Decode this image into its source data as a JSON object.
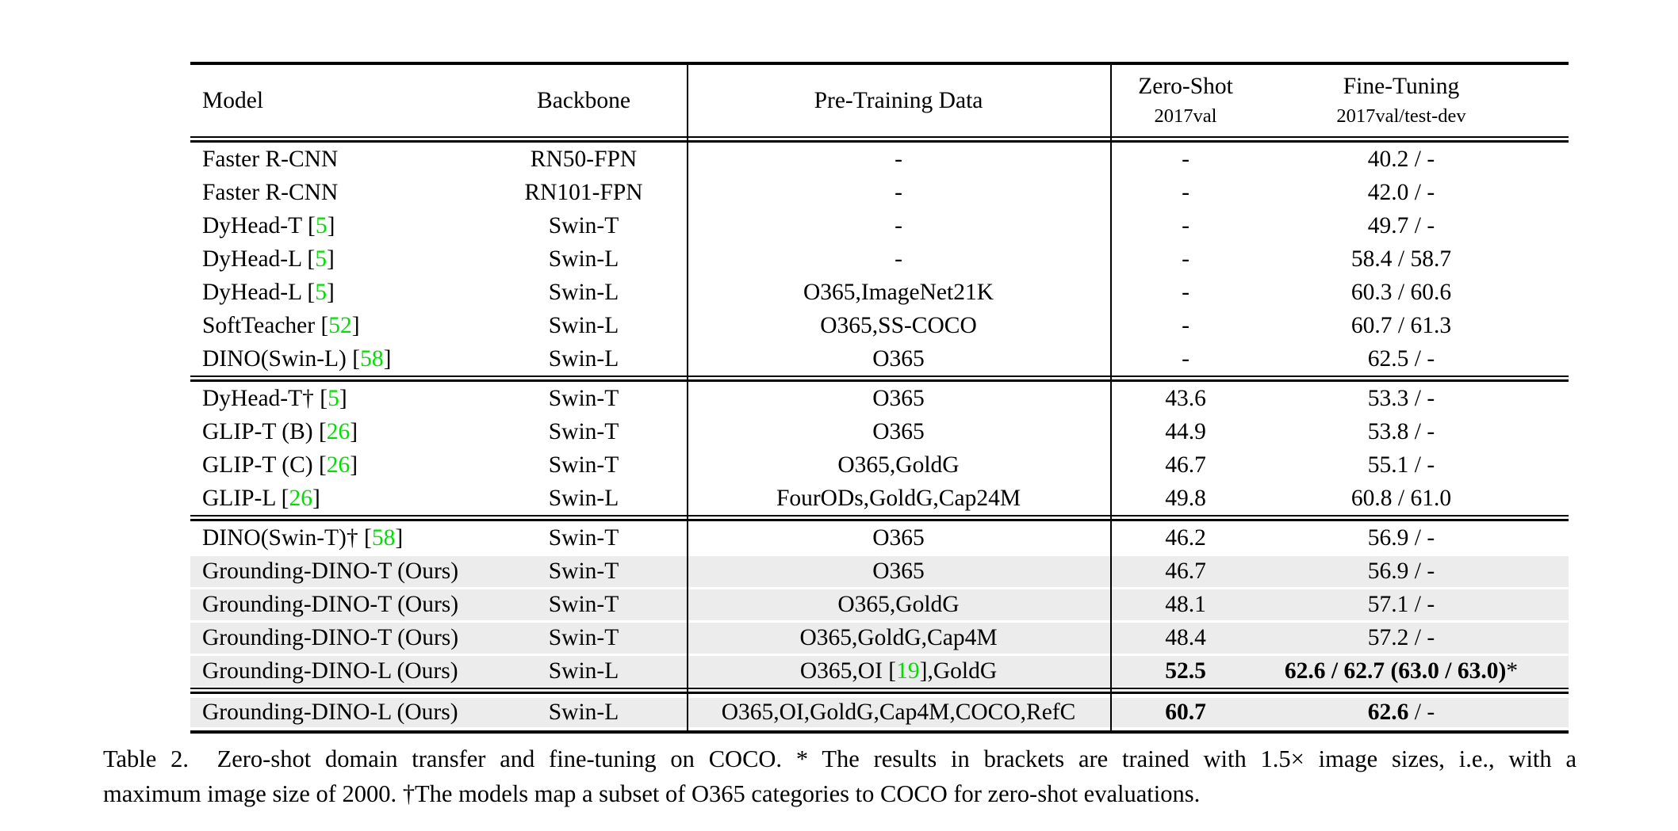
{
  "colors": {
    "citation_green": "#00e000",
    "row_highlight_gray": "#ececec"
  },
  "table": {
    "header": {
      "model": "Model",
      "backbone": "Backbone",
      "pretrain": "Pre-Training Data",
      "zeroshot": "Zero-Shot",
      "zeroshot_sub": "2017val",
      "finetune": "Fine-Tuning",
      "finetune_sub": "2017val/test-dev"
    },
    "sections": [
      {
        "rows": [
          {
            "model_pre": "Faster R-CNN",
            "model_cite": "",
            "model_post": "",
            "backbone": "RN50-FPN",
            "pretrain_pre": "-",
            "pretrain_cite": "",
            "pretrain_post": "",
            "zeroshot_bold": "",
            "zeroshot": "-",
            "finetune_bold": "",
            "finetune": "40.2 / -",
            "shade": "off"
          },
          {
            "model_pre": "Faster R-CNN",
            "model_cite": "",
            "model_post": "",
            "backbone": "RN101-FPN",
            "pretrain_pre": "-",
            "pretrain_cite": "",
            "pretrain_post": "",
            "zeroshot_bold": "",
            "zeroshot": "-",
            "finetune_bold": "",
            "finetune": "42.0 / -",
            "shade": "off"
          },
          {
            "model_pre": "DyHead-T [",
            "model_cite": "5",
            "model_post": "]",
            "backbone": "Swin-T",
            "pretrain_pre": "-",
            "pretrain_cite": "",
            "pretrain_post": "",
            "zeroshot_bold": "",
            "zeroshot": "-",
            "finetune_bold": "",
            "finetune": "49.7 / -",
            "shade": "off"
          },
          {
            "model_pre": "DyHead-L [",
            "model_cite": "5",
            "model_post": "]",
            "backbone": "Swin-L",
            "pretrain_pre": "-",
            "pretrain_cite": "",
            "pretrain_post": "",
            "zeroshot_bold": "",
            "zeroshot": "-",
            "finetune_bold": "",
            "finetune": "58.4 / 58.7",
            "shade": "off"
          },
          {
            "model_pre": "DyHead-L [",
            "model_cite": "5",
            "model_post": "]",
            "backbone": "Swin-L",
            "pretrain_pre": "O365,ImageNet21K",
            "pretrain_cite": "",
            "pretrain_post": "",
            "zeroshot_bold": "",
            "zeroshot": "-",
            "finetune_bold": "",
            "finetune": "60.3 / 60.6",
            "shade": "off"
          },
          {
            "model_pre": "SoftTeacher [",
            "model_cite": "52",
            "model_post": "]",
            "backbone": "Swin-L",
            "pretrain_pre": "O365,SS-COCO",
            "pretrain_cite": "",
            "pretrain_post": "",
            "zeroshot_bold": "",
            "zeroshot": "-",
            "finetune_bold": "",
            "finetune": "60.7 / 61.3",
            "shade": "off"
          },
          {
            "model_pre": "DINO(Swin-L) [",
            "model_cite": "58",
            "model_post": "]",
            "backbone": "Swin-L",
            "pretrain_pre": "O365",
            "pretrain_cite": "",
            "pretrain_post": "",
            "zeroshot_bold": "",
            "zeroshot": "-",
            "finetune_bold": "",
            "finetune": "62.5 / -",
            "shade": "off"
          }
        ]
      },
      {
        "rows": [
          {
            "model_pre": "DyHead-T† [",
            "model_cite": "5",
            "model_post": "]",
            "backbone": "Swin-T",
            "pretrain_pre": "O365",
            "pretrain_cite": "",
            "pretrain_post": "",
            "zeroshot_bold": "",
            "zeroshot": "43.6",
            "finetune_bold": "",
            "finetune": "53.3 / -",
            "shade": "off"
          },
          {
            "model_pre": "GLIP-T (B) [",
            "model_cite": "26",
            "model_post": "]",
            "backbone": "Swin-T",
            "pretrain_pre": "O365",
            "pretrain_cite": "",
            "pretrain_post": "",
            "zeroshot_bold": "",
            "zeroshot": "44.9",
            "finetune_bold": "",
            "finetune": "53.8 / -",
            "shade": "off"
          },
          {
            "model_pre": "GLIP-T (C) [",
            "model_cite": "26",
            "model_post": "]",
            "backbone": "Swin-T",
            "pretrain_pre": "O365,GoldG",
            "pretrain_cite": "",
            "pretrain_post": "",
            "zeroshot_bold": "",
            "zeroshot": "46.7",
            "finetune_bold": "",
            "finetune": "55.1 / -",
            "shade": "off"
          },
          {
            "model_pre": "GLIP-L [",
            "model_cite": "26",
            "model_post": "]",
            "backbone": "Swin-L",
            "pretrain_pre": "FourODs,GoldG,Cap24M",
            "pretrain_cite": "",
            "pretrain_post": "",
            "zeroshot_bold": "",
            "zeroshot": "49.8",
            "finetune_bold": "",
            "finetune": "60.8 / 61.0",
            "shade": "off"
          }
        ]
      },
      {
        "rows": [
          {
            "model_pre": "DINO(Swin-T)† [",
            "model_cite": "58",
            "model_post": "]",
            "backbone": "Swin-T",
            "pretrain_pre": "O365",
            "pretrain_cite": "",
            "pretrain_post": "",
            "zeroshot_bold": "",
            "zeroshot": "46.2",
            "finetune_bold": "",
            "finetune": "56.9 / -",
            "shade": "off"
          },
          {
            "model_pre": "Grounding-DINO-T (Ours)",
            "model_cite": "",
            "model_post": "",
            "backbone": "Swin-T",
            "pretrain_pre": "O365",
            "pretrain_cite": "",
            "pretrain_post": "",
            "zeroshot_bold": "",
            "zeroshot": "46.7",
            "finetune_bold": "",
            "finetune": "56.9 / -",
            "shade": "on"
          },
          {
            "model_pre": "Grounding-DINO-T (Ours)",
            "model_cite": "",
            "model_post": "",
            "backbone": "Swin-T",
            "pretrain_pre": "O365,GoldG",
            "pretrain_cite": "",
            "pretrain_post": "",
            "zeroshot_bold": "",
            "zeroshot": "48.1",
            "finetune_bold": "",
            "finetune": "57.1 / -",
            "shade": "on"
          },
          {
            "model_pre": "Grounding-DINO-T (Ours)",
            "model_cite": "",
            "model_post": "",
            "backbone": "Swin-T",
            "pretrain_pre": "O365,GoldG,Cap4M",
            "pretrain_cite": "",
            "pretrain_post": "",
            "zeroshot_bold": "",
            "zeroshot": "48.4",
            "finetune_bold": "",
            "finetune": "57.2 / -",
            "shade": "on"
          },
          {
            "model_pre": "Grounding-DINO-L (Ours)",
            "model_cite": "",
            "model_post": "",
            "backbone": "Swin-L",
            "pretrain_pre": "O365,OI [",
            "pretrain_cite": "19",
            "pretrain_post": "],GoldG",
            "zeroshot_bold": "52.5",
            "zeroshot": "",
            "finetune_bold": "62.6 / 62.7 (63.0 / 63.0)",
            "finetune": "*",
            "shade": "on"
          }
        ]
      },
      {
        "rows": [
          {
            "model_pre": "Grounding-DINO-L (Ours)",
            "model_cite": "",
            "model_post": "",
            "backbone": "Swin-L",
            "pretrain_pre": "O365,OI,GoldG,Cap4M,COCO,RefC",
            "pretrain_cite": "",
            "pretrain_post": "",
            "zeroshot_bold": "60.7",
            "zeroshot": "",
            "finetune_bold": "62.6",
            "finetune": " / -",
            "shade": "on"
          }
        ]
      }
    ]
  },
  "caption": {
    "line1": "Table 2.  Zero-shot domain transfer and fine-tuning on COCO. * The results in brackets are trained with 1.5× image sizes, i.e., with a",
    "line2": "maximum image size of 2000. †The models map a subset of O365 categories to COCO for zero-shot evaluations."
  }
}
